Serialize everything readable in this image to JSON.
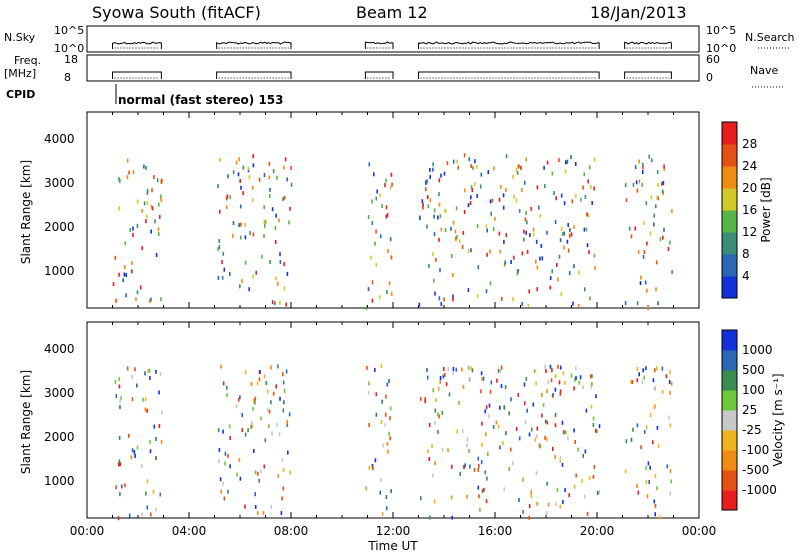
{
  "header": {
    "station": "Syowa South (fitACF)",
    "beam": "Beam 12",
    "date": "18/Jan/2013"
  },
  "strips": {
    "nsky_label": "N.Sky",
    "nsky_ticks": [
      "10^5",
      "10^0"
    ],
    "nsearch_label": "N.Search",
    "nsearch_ticks": [
      "10^5",
      "10^0"
    ],
    "freq_label": "Freq.",
    "freq_unit": "[MHz]",
    "freq_ticks": [
      "18",
      "8"
    ],
    "nave_label": "Nave",
    "nave_ticks": [
      "60",
      "0"
    ],
    "cpid_label": "CPID",
    "cpid_text": "normal (fast stereo) 153"
  },
  "axes": {
    "ylabel": "Slant Range [km]",
    "xlabel": "Time UT",
    "yticks": [
      "1000",
      "2000",
      "3000",
      "4000"
    ],
    "xticks": [
      "00:00",
      "04:00",
      "08:00",
      "12:00",
      "16:00",
      "20:00",
      "00:00"
    ]
  },
  "colorbars": {
    "power": {
      "label": "Power [dB]",
      "ticks": [
        "4",
        "8",
        "12",
        "16",
        "20",
        "24",
        "28"
      ],
      "colors": [
        "#1432dc",
        "#2868b4",
        "#3c8c78",
        "#58b446",
        "#d2c828",
        "#f08c14",
        "#e65014",
        "#e61e1e"
      ]
    },
    "velocity": {
      "label": "Velocity [m s⁻¹]",
      "ticks": [
        "1000",
        "500",
        "100",
        "25",
        "-25",
        "-100",
        "-500",
        "-1000"
      ],
      "colors": [
        "#1432dc",
        "#2868b4",
        "#3c8c50",
        "#6ec83c",
        "#c8c8c8",
        "#f0b41e",
        "#f08c14",
        "#e65014",
        "#e61e1e"
      ]
    }
  },
  "chart_data": {
    "type": "scatter",
    "time_range_hours": [
      0,
      24
    ],
    "range_km": [
      180,
      4500
    ],
    "active_intervals_ut": [
      {
        "start": "01:00",
        "end": "02:55"
      },
      {
        "start": "05:05",
        "end": "08:00"
      },
      {
        "start": "10:55",
        "end": "12:00"
      },
      {
        "start": "13:00",
        "end": "20:05"
      },
      {
        "start": "21:05",
        "end": "22:55"
      }
    ],
    "frequency_mhz": 10,
    "nsky_level": "10^0",
    "scatter_range_km": [
      200,
      3600
    ]
  }
}
